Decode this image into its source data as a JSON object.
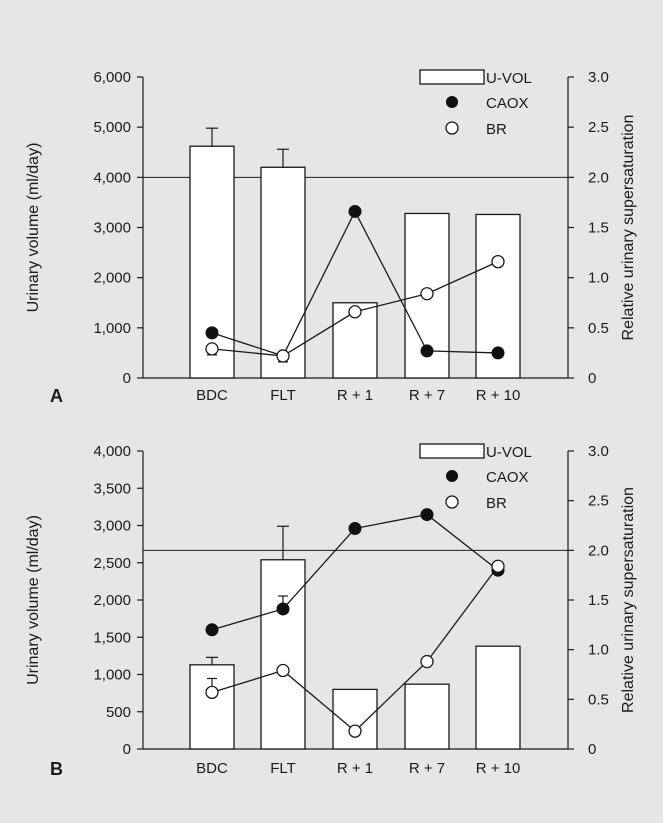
{
  "chart_data": [
    {
      "panel_label": "A",
      "type": "bar",
      "categories": [
        "BDC",
        "FLT",
        "R + 1",
        "R + 7",
        "R + 10"
      ],
      "ylabel": "Urinary volume (ml/day)",
      "y2label": "Relative urinary supersaturation",
      "ylim": [
        0,
        6000
      ],
      "y2lim": [
        0,
        3.0
      ],
      "yticks": [
        "0",
        "1,000",
        "2,000",
        "3,000",
        "4,000",
        "5,000",
        "6,000"
      ],
      "y2ticks": [
        "0",
        "0.5",
        "1.0",
        "1.5",
        "2.0",
        "2.5",
        "3.0"
      ],
      "reference_line_y2": 2.0,
      "legend_position": "top-right",
      "series": [
        {
          "name": "U-VOL",
          "kind": "bar",
          "axis": "left",
          "values": [
            4620,
            4200,
            1500,
            3280,
            3260
          ],
          "error_plus": [
            360,
            360,
            null,
            null,
            null
          ]
        },
        {
          "name": "CAOX",
          "kind": "line-filled-marker",
          "axis": "right",
          "values": [
            0.45,
            0.22,
            1.66,
            0.27,
            0.25
          ]
        },
        {
          "name": "BR",
          "kind": "line-open-marker",
          "axis": "right",
          "values": [
            0.29,
            0.22,
            0.66,
            0.84,
            1.16
          ],
          "error_minus": [
            0.06,
            0.06,
            null,
            null,
            null
          ]
        }
      ]
    },
    {
      "panel_label": "B",
      "type": "bar",
      "categories": [
        "BDC",
        "FLT",
        "R + 1",
        "R + 7",
        "R + 10"
      ],
      "ylabel": "Urinary volume (ml/day)",
      "y2label": "Relative urinary supersaturation",
      "ylim": [
        0,
        4000
      ],
      "y2lim": [
        0,
        3.0
      ],
      "yticks": [
        "0",
        "500",
        "1,000",
        "1,500",
        "2,000",
        "2,500",
        "3,000",
        "3,500",
        "4,000"
      ],
      "y2ticks": [
        "0",
        "0.5",
        "1.0",
        "1.5",
        "2.0",
        "2.5",
        "3.0"
      ],
      "reference_line_y2": 2.0,
      "legend_position": "top-right",
      "series": [
        {
          "name": "U-VOL",
          "kind": "bar",
          "axis": "left",
          "values": [
            1130,
            2540,
            800,
            870,
            1380
          ],
          "error_plus": [
            100,
            450,
            null,
            null,
            null
          ],
          "error_minus": [
            null,
            0,
            null,
            null,
            null
          ]
        },
        {
          "name": "CAOX",
          "kind": "line-filled-marker",
          "axis": "right",
          "values": [
            1.2,
            1.41,
            2.22,
            2.36,
            1.8
          ],
          "error_plus": [
            null,
            0.13,
            null,
            null,
            null
          ]
        },
        {
          "name": "BR",
          "kind": "line-open-marker",
          "axis": "right",
          "values": [
            0.57,
            0.79,
            0.18,
            0.88,
            1.84
          ],
          "error_plus": [
            0.14,
            null,
            null,
            null,
            null
          ]
        }
      ]
    }
  ]
}
